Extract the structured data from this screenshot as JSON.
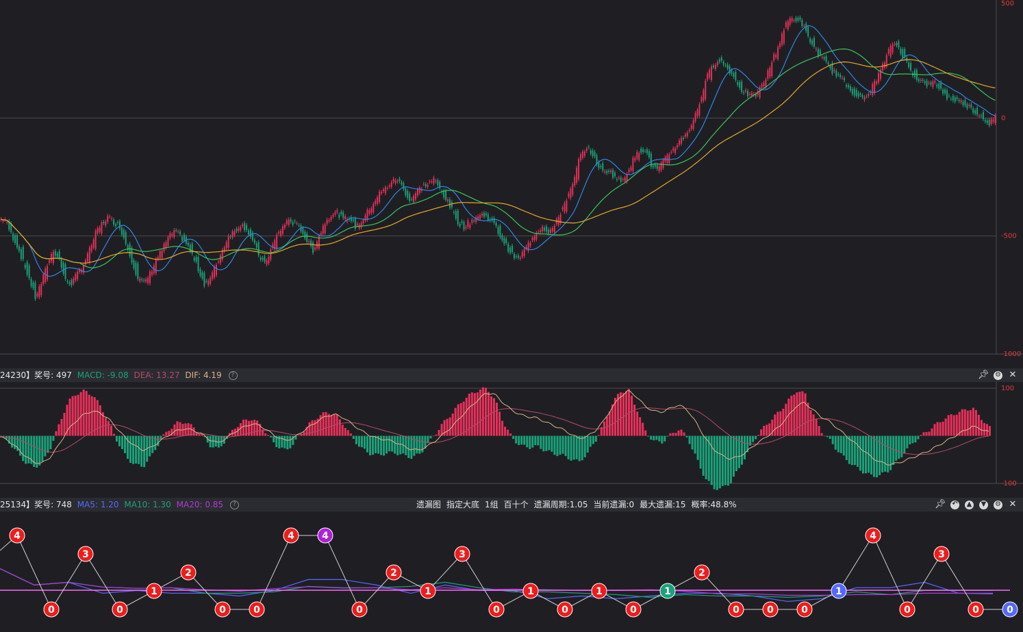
{
  "colors": {
    "background": "#1f1f23",
    "up": "#e8305a",
    "down": "#1aa27a",
    "ma_blue": "#2f86e8",
    "ma_green": "#3cc45a",
    "ma_orange": "#e8a72c",
    "axis_label": "#e23b3b",
    "grid": "#4a4a50"
  },
  "main_axis": {
    "labels": [
      "500",
      "0",
      "-500",
      "-1000"
    ]
  },
  "macd_header": {
    "prefix": "24230】奖号: 497",
    "macd": "MACD: -9.08",
    "dea": "DEA: 13.27",
    "dif": "DIF: 4.19",
    "colors": {
      "macd": "#1aa27a",
      "dea": "#b84a6a",
      "dif": "#d8b48a"
    },
    "axis_labels": [
      "100",
      "-100"
    ]
  },
  "omit_header": {
    "prefix": "25134】奖号: 748",
    "ma5": "MA5: 1.20",
    "ma10": "MA10: 1.30",
    "ma20": "MA20: 0.85",
    "colors": {
      "ma5": "#5468ff",
      "ma10": "#1aa27a",
      "ma20": "#b03ad8"
    },
    "info": [
      "遗漏图",
      "指定大底",
      "1组",
      "百十个",
      "遗漏周期:1.05",
      "当前遗漏:0",
      "最大遗漏:15",
      "概率:48.8%"
    ]
  },
  "chart_data": [
    {
      "type": "candlestick",
      "ylim": [
        -1000,
        500
      ],
      "yticks": [
        500,
        0,
        -500,
        -1000
      ],
      "series": [
        {
          "name": "",
          "values": []
        }
      ],
      "closes": [
        -430,
        -490,
        -540,
        -610,
        -680,
        -760,
        -700,
        -620,
        -560,
        -600,
        -690,
        -700,
        -660,
        -620,
        -560,
        -490,
        -450,
        -420,
        -440,
        -460,
        -530,
        -600,
        -680,
        -700,
        -660,
        -600,
        -560,
        -510,
        -480,
        -500,
        -530,
        -580,
        -640,
        -700,
        -680,
        -620,
        -560,
        -500,
        -480,
        -450,
        -470,
        -520,
        -580,
        -620,
        -560,
        -500,
        -460,
        -430,
        -450,
        -470,
        -520,
        -560,
        -500,
        -440,
        -410,
        -400,
        -430,
        -420,
        -460,
        -440,
        -400,
        -360,
        -320,
        -300,
        -270,
        -260,
        -300,
        -350,
        -320,
        -290,
        -280,
        -260,
        -300,
        -340,
        -390,
        -440,
        -460,
        -440,
        -420,
        -410,
        -420,
        -450,
        -500,
        -540,
        -580,
        -600,
        -560,
        -520,
        -480,
        -460,
        -480,
        -460,
        -400,
        -340,
        -290,
        -180,
        -130,
        -140,
        -190,
        -230,
        -220,
        -250,
        -270,
        -230,
        -180,
        -140,
        -130,
        -200,
        -220,
        -190,
        -150,
        -120,
        -90,
        -60,
        -10,
        60,
        160,
        210,
        250,
        230,
        200,
        160,
        120,
        100,
        90,
        120,
        170,
        240,
        300,
        380,
        420,
        420,
        400,
        340,
        300,
        260,
        230,
        200,
        180,
        150,
        120,
        100,
        80,
        100,
        150,
        200,
        260,
        320,
        300,
        250,
        200,
        170,
        150,
        140,
        150,
        120,
        90,
        80,
        70,
        60,
        40,
        20,
        0,
        -20,
        0
      ],
      "ma_blue": [],
      "ma_green": [],
      "ma_orange": []
    },
    {
      "type": "macd",
      "ylim": [
        -100,
        100
      ],
      "yticks": [
        100,
        -100
      ],
      "dif": [
        -2,
        -10,
        -25,
        -42,
        -55,
        -58,
        -45,
        -20,
        10,
        30,
        45,
        52,
        48,
        35,
        15,
        -5,
        -20,
        -30,
        -25,
        -12,
        0,
        10,
        15,
        12,
        5,
        -8,
        -15,
        -5,
        8,
        18,
        25,
        22,
        10,
        -2,
        -10,
        -5,
        8,
        20,
        32,
        42,
        45,
        38,
        25,
        12,
        2,
        -5,
        -8,
        -12,
        -20,
        -28,
        -30,
        -22,
        -10,
        5,
        20,
        40,
        58,
        75,
        90,
        88,
        70,
        55,
        45,
        40,
        38,
        30,
        22,
        15,
        5,
        -5,
        -2,
        10,
        30,
        58,
        82,
        95,
        82,
        62,
        52,
        50,
        58,
        65,
        55,
        30,
        0,
        -25,
        -40,
        -48,
        -45,
        -35,
        -20,
        -8,
        5,
        20,
        40,
        62,
        70,
        55,
        40,
        30,
        15,
        0,
        -15,
        -30,
        -45,
        -55,
        -60,
        -58,
        -52,
        -45,
        -38,
        -30,
        -20,
        -10,
        0,
        10,
        20,
        15,
        8
      ],
      "dea": [],
      "bars": []
    },
    {
      "type": "line",
      "node_values": [
        4,
        0,
        3,
        0,
        1,
        2,
        0,
        0,
        4,
        4,
        0,
        2,
        1,
        3,
        0,
        1,
        0,
        1,
        0,
        1,
        2,
        0,
        0,
        0,
        1,
        4,
        0,
        3,
        0,
        0
      ],
      "node_colors": [
        "red",
        "red",
        "red",
        "red",
        "red",
        "red",
        "red",
        "red",
        "red",
        "purple",
        "red",
        "red",
        "red",
        "red",
        "red",
        "red",
        "red",
        "red",
        "red",
        "teal",
        "red",
        "red",
        "red",
        "red",
        "blue",
        "red",
        "red",
        "red",
        "red",
        "blue"
      ]
    }
  ]
}
